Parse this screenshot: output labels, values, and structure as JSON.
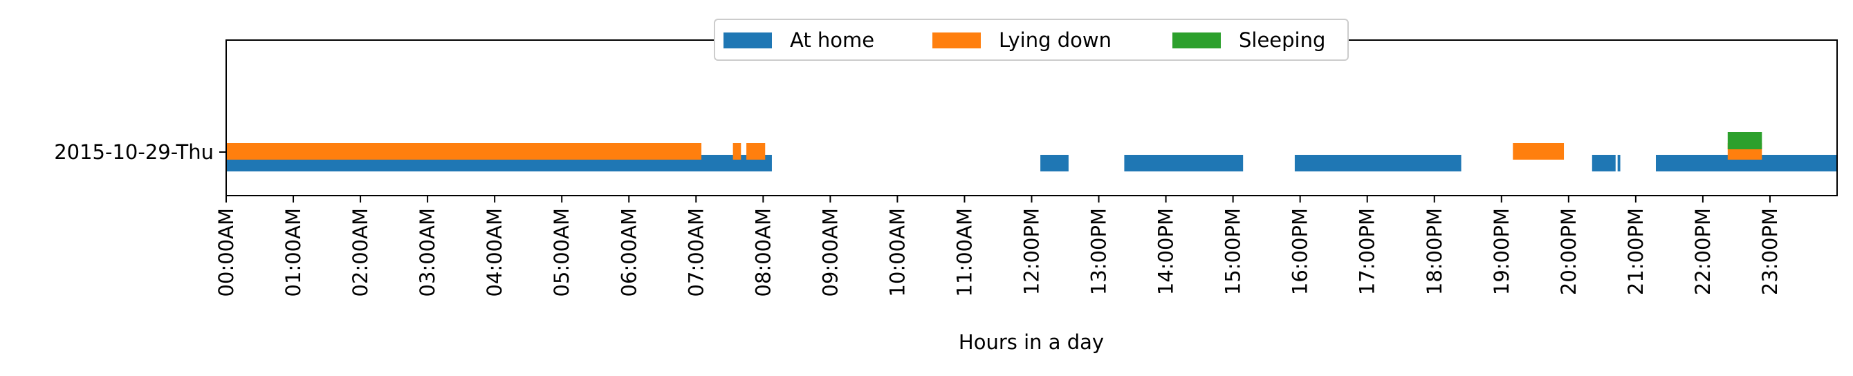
{
  "chart_data": {
    "type": "timeline",
    "title": "",
    "xlabel": "Hours in a day",
    "ylabel": "",
    "xlim": [
      0,
      24
    ],
    "categories": [
      "2015-10-29-Thu"
    ],
    "x_ticks": [
      {
        "value": 0,
        "label": "00:00AM"
      },
      {
        "value": 1,
        "label": "01:00AM"
      },
      {
        "value": 2,
        "label": "02:00AM"
      },
      {
        "value": 3,
        "label": "03:00AM"
      },
      {
        "value": 4,
        "label": "04:00AM"
      },
      {
        "value": 5,
        "label": "05:00AM"
      },
      {
        "value": 6,
        "label": "06:00AM"
      },
      {
        "value": 7,
        "label": "07:00AM"
      },
      {
        "value": 8,
        "label": "08:00AM"
      },
      {
        "value": 9,
        "label": "09:00AM"
      },
      {
        "value": 10,
        "label": "10:00AM"
      },
      {
        "value": 11,
        "label": "11:00AM"
      },
      {
        "value": 12,
        "label": "12:00PM"
      },
      {
        "value": 13,
        "label": "13:00PM"
      },
      {
        "value": 14,
        "label": "14:00PM"
      },
      {
        "value": 15,
        "label": "15:00PM"
      },
      {
        "value": 16,
        "label": "16:00PM"
      },
      {
        "value": 17,
        "label": "17:00PM"
      },
      {
        "value": 18,
        "label": "18:00PM"
      },
      {
        "value": 19,
        "label": "19:00PM"
      },
      {
        "value": 20,
        "label": "20:00PM"
      },
      {
        "value": 21,
        "label": "21:00PM"
      },
      {
        "value": 22,
        "label": "22:00PM"
      },
      {
        "value": 23,
        "label": "23:00PM"
      }
    ],
    "legend_position": "top-center",
    "grid": false,
    "series": [
      {
        "name": "At home",
        "color": "#1f77b4",
        "intervals": [
          [
            0.0,
            8.13
          ],
          [
            12.13,
            12.55
          ],
          [
            13.38,
            15.15
          ],
          [
            15.92,
            18.4
          ],
          [
            20.35,
            20.7
          ],
          [
            20.73,
            20.77
          ],
          [
            21.3,
            24.0
          ]
        ]
      },
      {
        "name": "Lying down",
        "color": "#ff7f0e",
        "intervals": [
          [
            0.0,
            7.08
          ],
          [
            7.55,
            7.67
          ],
          [
            7.75,
            8.03
          ],
          [
            19.17,
            19.93
          ],
          [
            22.37,
            22.88
          ]
        ]
      },
      {
        "name": "Sleeping",
        "color": "#2ca02c",
        "intervals": [
          [
            22.37,
            22.88
          ]
        ]
      }
    ]
  }
}
